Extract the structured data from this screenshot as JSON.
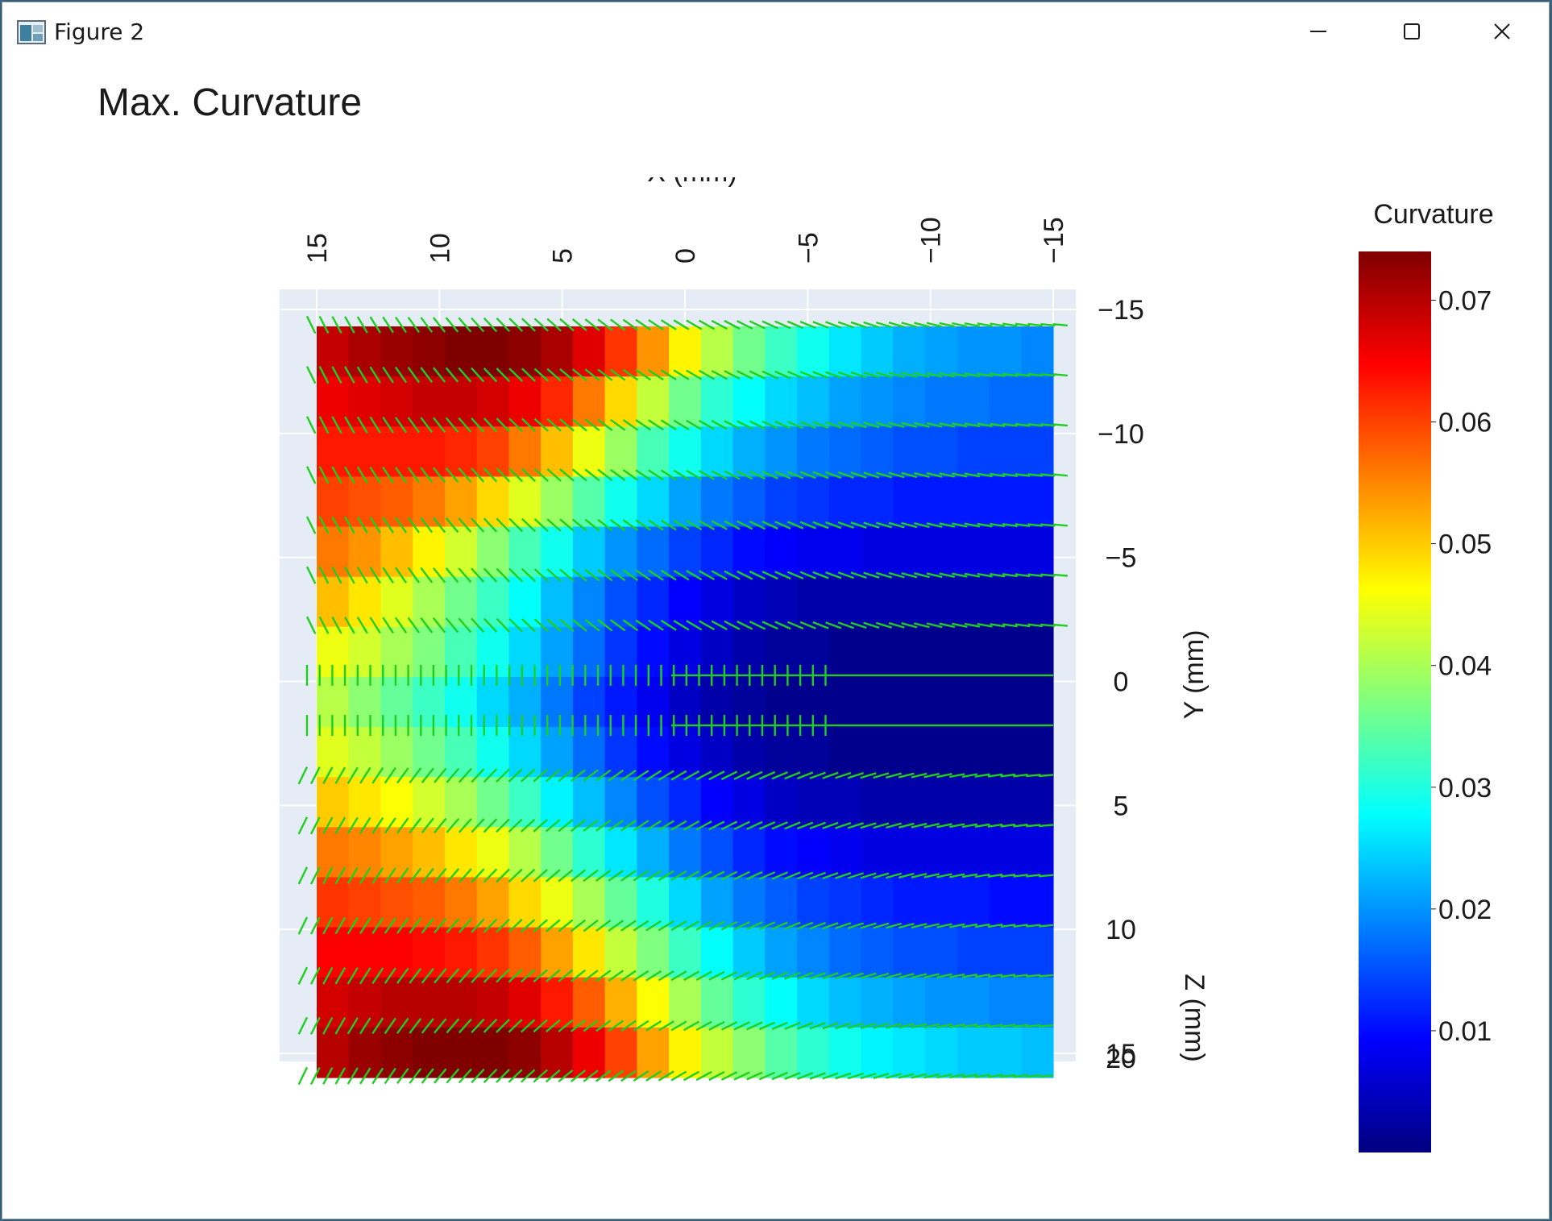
{
  "window": {
    "title": "Figure 2",
    "icons": {
      "app": "figure-icon",
      "minimize": "minimize-icon",
      "maximize": "maximize-icon",
      "close": "close-icon"
    }
  },
  "chart_data": {
    "type": "heatmap",
    "title": "Max. Curvature",
    "colorscale": "jet",
    "x_axis": {
      "label": "X (mm)",
      "range": [
        15,
        -15
      ],
      "ticks": [
        15,
        10,
        5,
        0,
        -5,
        -10,
        -15
      ],
      "tick_labels": [
        "15",
        "10",
        "5",
        "0",
        "−5",
        "−10",
        "−15"
      ]
    },
    "y_axis": {
      "label": "Y (mm)",
      "range": [
        -15,
        15
      ],
      "ticks": [
        -15,
        -10,
        -5,
        0,
        5,
        10,
        15
      ],
      "tick_labels": [
        "−15",
        "−10",
        "−5",
        "0",
        "5",
        "10",
        "15"
      ]
    },
    "z_axis": {
      "label": "Z (mm)",
      "tick_labels": [
        "20"
      ]
    },
    "colorbar": {
      "title": "Curvature",
      "range": [
        0.0,
        0.074
      ],
      "ticks": [
        0.07,
        0.06,
        0.05,
        0.04,
        0.03,
        0.02,
        0.01
      ],
      "tick_labels": [
        "0.07",
        "0.06",
        "0.05",
        "0.04",
        "0.03",
        "0.02",
        "0.01"
      ]
    },
    "x": [
      14.3,
      13.0,
      11.7,
      10.4,
      9.1,
      7.8,
      6.5,
      5.2,
      3.9,
      2.6,
      1.3,
      0,
      -1.3,
      -2.6,
      -3.9,
      -5.2,
      -6.5,
      -7.8,
      -9.1,
      -10.4,
      -11.7,
      -13.0,
      -14.3
    ],
    "y": [
      -14,
      -12,
      -10,
      -8,
      -6,
      -4,
      -2,
      0,
      2,
      4,
      6,
      8,
      10,
      12,
      14
    ],
    "values": [
      [
        0.069,
        0.071,
        0.072,
        0.073,
        0.074,
        0.074,
        0.073,
        0.071,
        0.067,
        0.061,
        0.054,
        0.047,
        0.041,
        0.036,
        0.032,
        0.029,
        0.026,
        0.024,
        0.022,
        0.021,
        0.02,
        0.02,
        0.019
      ],
      [
        0.066,
        0.067,
        0.068,
        0.069,
        0.069,
        0.068,
        0.066,
        0.062,
        0.056,
        0.049,
        0.042,
        0.036,
        0.031,
        0.028,
        0.025,
        0.023,
        0.021,
        0.02,
        0.019,
        0.018,
        0.018,
        0.017,
        0.017
      ],
      [
        0.063,
        0.063,
        0.063,
        0.063,
        0.062,
        0.06,
        0.056,
        0.051,
        0.045,
        0.039,
        0.033,
        0.029,
        0.025,
        0.022,
        0.02,
        0.018,
        0.017,
        0.016,
        0.015,
        0.015,
        0.014,
        0.014,
        0.014
      ],
      [
        0.06,
        0.059,
        0.058,
        0.056,
        0.053,
        0.049,
        0.044,
        0.039,
        0.034,
        0.029,
        0.025,
        0.021,
        0.018,
        0.016,
        0.014,
        0.013,
        0.012,
        0.012,
        0.011,
        0.011,
        0.011,
        0.011,
        0.011
      ],
      [
        0.056,
        0.054,
        0.051,
        0.047,
        0.043,
        0.038,
        0.033,
        0.029,
        0.024,
        0.02,
        0.017,
        0.014,
        0.012,
        0.01,
        0.009,
        0.008,
        0.008,
        0.007,
        0.007,
        0.007,
        0.007,
        0.007,
        0.007
      ],
      [
        0.051,
        0.048,
        0.044,
        0.04,
        0.036,
        0.032,
        0.028,
        0.023,
        0.019,
        0.015,
        0.012,
        0.009,
        0.007,
        0.005,
        0.004,
        0.003,
        0.003,
        0.003,
        0.003,
        0.003,
        0.003,
        0.003,
        0.003
      ],
      [
        0.045,
        0.043,
        0.04,
        0.037,
        0.033,
        0.029,
        0.025,
        0.021,
        0.017,
        0.013,
        0.01,
        0.007,
        0.005,
        0.003,
        0.002,
        0.002,
        0.001,
        0.001,
        0.001,
        0.001,
        0.001,
        0.001,
        0.001
      ],
      [
        0.041,
        0.038,
        0.035,
        0.032,
        0.029,
        0.025,
        0.022,
        0.018,
        0.014,
        0.011,
        0.008,
        0.005,
        0.003,
        0.002,
        0.001,
        0.001,
        0.001,
        0.001,
        0.001,
        0.001,
        0.001,
        0.001,
        0.001
      ],
      [
        0.044,
        0.042,
        0.039,
        0.036,
        0.033,
        0.029,
        0.025,
        0.021,
        0.017,
        0.013,
        0.01,
        0.007,
        0.005,
        0.003,
        0.002,
        0.002,
        0.001,
        0.001,
        0.001,
        0.001,
        0.001,
        0.001,
        0.001
      ],
      [
        0.05,
        0.048,
        0.046,
        0.043,
        0.04,
        0.036,
        0.032,
        0.027,
        0.023,
        0.019,
        0.015,
        0.012,
        0.009,
        0.007,
        0.005,
        0.004,
        0.004,
        0.003,
        0.003,
        0.003,
        0.003,
        0.003,
        0.003
      ],
      [
        0.056,
        0.055,
        0.053,
        0.051,
        0.048,
        0.045,
        0.041,
        0.036,
        0.031,
        0.026,
        0.022,
        0.018,
        0.015,
        0.012,
        0.01,
        0.009,
        0.008,
        0.007,
        0.007,
        0.007,
        0.007,
        0.007,
        0.007
      ],
      [
        0.061,
        0.06,
        0.059,
        0.058,
        0.056,
        0.053,
        0.049,
        0.045,
        0.04,
        0.035,
        0.03,
        0.025,
        0.021,
        0.018,
        0.016,
        0.014,
        0.013,
        0.012,
        0.011,
        0.011,
        0.011,
        0.01,
        0.01
      ],
      [
        0.065,
        0.065,
        0.065,
        0.064,
        0.063,
        0.061,
        0.058,
        0.053,
        0.048,
        0.042,
        0.037,
        0.032,
        0.028,
        0.024,
        0.021,
        0.019,
        0.017,
        0.016,
        0.015,
        0.015,
        0.014,
        0.014,
        0.014
      ],
      [
        0.068,
        0.069,
        0.07,
        0.07,
        0.07,
        0.069,
        0.067,
        0.063,
        0.058,
        0.052,
        0.046,
        0.04,
        0.035,
        0.031,
        0.028,
        0.025,
        0.023,
        0.022,
        0.021,
        0.02,
        0.02,
        0.019,
        0.019
      ],
      [
        0.07,
        0.072,
        0.073,
        0.074,
        0.074,
        0.074,
        0.073,
        0.07,
        0.066,
        0.06,
        0.053,
        0.047,
        0.042,
        0.038,
        0.034,
        0.031,
        0.029,
        0.027,
        0.026,
        0.025,
        0.024,
        0.024,
        0.023
      ]
    ],
    "vector_overlay": {
      "color": "#1fcf1f",
      "description_source": "green line segments along each row"
    }
  }
}
